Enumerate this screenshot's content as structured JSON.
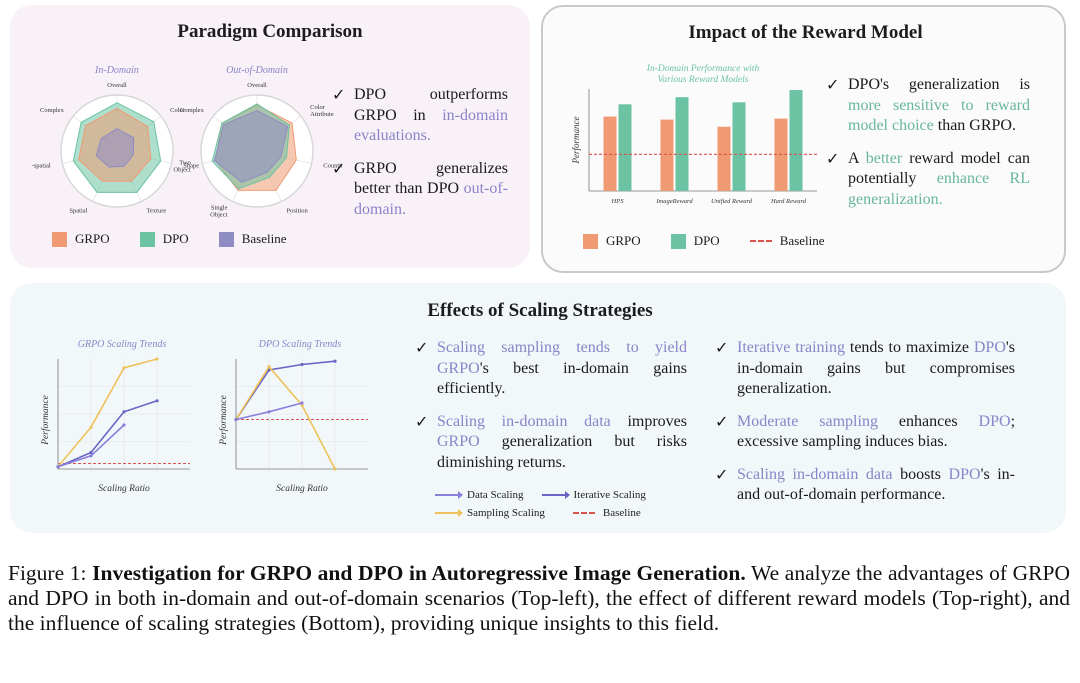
{
  "colors": {
    "grpo": "#ef9a73",
    "dpo": "#6cc3a3",
    "baseline_swatch": "#8f8cc4",
    "data_scaling": "#8a7fd9",
    "iterative_scaling": "#6a64c4",
    "sampling_scaling": "#efc15a",
    "baseline_line": "#d9534f",
    "highlight_purple": "#8a84c9",
    "highlight_green": "#68b79a"
  },
  "panel_tl": {
    "title": "Paradigm Comparison",
    "bullets": [
      {
        "pre": "DPO outperforms GRPO in ",
        "hl": "in-domain evaluations.",
        "post": ""
      },
      {
        "pre": "GRPO generalizes better than DPO ",
        "hl": "out-of-domain.",
        "post": ""
      }
    ],
    "legend": [
      "GRPO",
      "DPO",
      "Baseline"
    ]
  },
  "panel_tr": {
    "title": "Impact of the Reward Model",
    "bullets": [
      {
        "pre": "DPO's generalization is ",
        "hl": "more sensitive to reward model choice",
        "post": " than GRPO."
      },
      {
        "pre": "A ",
        "hl": "better",
        "mid": " reward model can potentially ",
        "hl2": "enhance RL generalization.",
        "post": ""
      }
    ],
    "legend": [
      "GRPO",
      "DPO",
      "Baseline"
    ]
  },
  "panel_bottom": {
    "title": "Effects of Scaling Strategies",
    "bullets_left": [
      {
        "hl": "Scaling sampling tends to yield GRPO",
        "post": "'s best in-domain gains efficiently."
      },
      {
        "hl": "Scaling in-domain data",
        "post": " improves ",
        "hl2": "GRPO",
        "post2": " generalization but risks diminishing returns."
      }
    ],
    "bullets_right": [
      {
        "hl": "Iterative training",
        "post": " tends to maximize ",
        "hl2": "DPO",
        "post2": "'s in-domain gains but compromises generalization."
      },
      {
        "hl": "Moderate sampling",
        "post": " enhances ",
        "hl2": "DPO",
        "post2": "; excessive sampling induces bias."
      },
      {
        "hl": "Scaling in-domain data",
        "post": " boosts ",
        "hl2": "DPO",
        "post2": "'s in- and out-of-domain performance."
      }
    ],
    "legend": [
      "Data Scaling",
      "Iterative Scaling",
      "Sampling Scaling",
      "Baseline"
    ]
  },
  "chart_data": [
    {
      "type": "radar",
      "title": "In-Domain",
      "axes": [
        "Overall",
        "Color",
        "Shape",
        "Texture",
        "Spatial",
        "Non-spatial",
        "Complex"
      ],
      "range": [
        0,
        1
      ],
      "series": [
        {
          "name": "DPO",
          "values": [
            0.86,
            0.84,
            0.8,
            0.82,
            0.82,
            0.8,
            0.82
          ]
        },
        {
          "name": "GRPO",
          "values": [
            0.76,
            0.7,
            0.62,
            0.6,
            0.6,
            0.7,
            0.72
          ]
        },
        {
          "name": "Baseline",
          "values": [
            0.4,
            0.38,
            0.3,
            0.3,
            0.32,
            0.38,
            0.36
          ]
        }
      ]
    },
    {
      "type": "radar",
      "title": "Out-of-Domain",
      "axes": [
        "Overall",
        "Color Attribute",
        "Counting",
        "Position",
        "Single Object",
        "Two Object",
        "Complex"
      ],
      "range": [
        0,
        1
      ],
      "series": [
        {
          "name": "GRPO",
          "values": [
            0.82,
            0.8,
            0.72,
            0.78,
            0.78,
            0.76,
            0.8
          ]
        },
        {
          "name": "DPO",
          "values": [
            0.84,
            0.74,
            0.54,
            0.52,
            0.75,
            0.82,
            0.8
          ]
        },
        {
          "name": "Baseline",
          "values": [
            0.72,
            0.7,
            0.44,
            0.42,
            0.62,
            0.78,
            0.76
          ]
        }
      ]
    },
    {
      "type": "bar",
      "title": "In-Domain Performance with Various Reward Models",
      "ylabel": "Performance",
      "categories": [
        "HPS",
        "ImageReward",
        "Unified Reward",
        "Hard Reward"
      ],
      "ylim": [
        0,
        1
      ],
      "baseline": 0.36,
      "series": [
        {
          "name": "GRPO",
          "values": [
            0.73,
            0.7,
            0.63,
            0.71
          ]
        },
        {
          "name": "DPO",
          "values": [
            0.85,
            0.92,
            0.87,
            0.99
          ]
        }
      ]
    },
    {
      "type": "line",
      "title": "GRPO Scaling Trends",
      "xlabel": "Scaling Ratio",
      "ylabel": "Performance",
      "xlim": [
        0,
        4
      ],
      "ylim": [
        0,
        1
      ],
      "baseline": 0.05,
      "series": [
        {
          "name": "Sampling Scaling",
          "x": [
            0,
            1,
            2,
            3
          ],
          "y": [
            0.02,
            0.38,
            0.92,
            1.0
          ]
        },
        {
          "name": "Iterative Scaling",
          "x": [
            0,
            1,
            2,
            3
          ],
          "y": [
            0.02,
            0.15,
            0.52,
            0.62
          ]
        },
        {
          "name": "Data Scaling",
          "x": [
            0,
            1,
            2
          ],
          "y": [
            0.02,
            0.12,
            0.4
          ]
        }
      ]
    },
    {
      "type": "line",
      "title": "DPO Scaling Trends",
      "xlabel": "Scaling Ratio",
      "ylabel": "Performance",
      "xlim": [
        0,
        4
      ],
      "ylim": [
        0,
        1
      ],
      "baseline": 0.45,
      "series": [
        {
          "name": "Iterative Scaling",
          "x": [
            0,
            1,
            2,
            3
          ],
          "y": [
            0.45,
            0.9,
            0.95,
            0.98
          ]
        },
        {
          "name": "Sampling Scaling",
          "x": [
            0,
            1,
            2,
            3
          ],
          "y": [
            0.45,
            0.93,
            0.58,
            0.0
          ]
        },
        {
          "name": "Data Scaling",
          "x": [
            0,
            1,
            2
          ],
          "y": [
            0.45,
            0.52,
            0.6
          ]
        }
      ]
    }
  ],
  "caption": {
    "label": "Figure 1:",
    "bold": "Investigation for GRPO and DPO in Autoregressive Image Generation.",
    "text": "We analyze the advantages of GRPO and DPO in both in-domain and out-of-domain scenarios (Top-left), the effect of different reward models (Top-right), and the influence of scaling strategies (Bottom), providing unique insights to this field."
  }
}
